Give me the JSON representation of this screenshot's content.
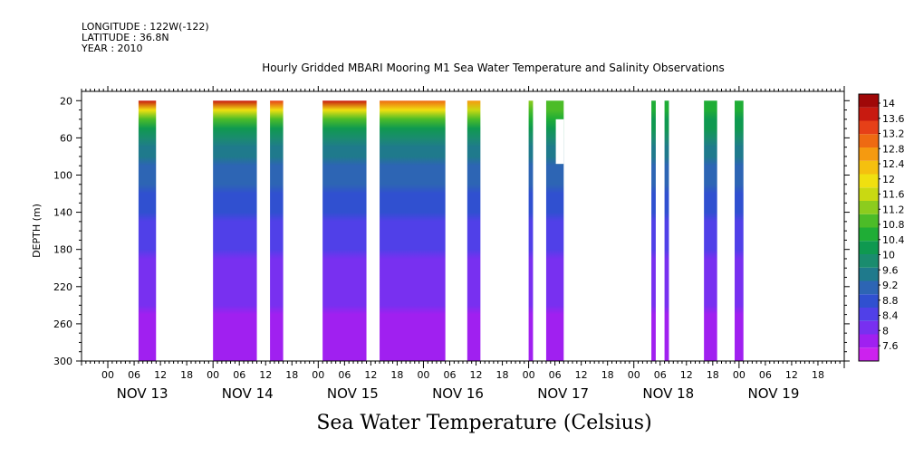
{
  "header": {
    "longitude": "LONGITUDE : 122W(-122)",
    "latitude": "LATITUDE : 36.8N",
    "year": "YEAR : 2010"
  },
  "chart_data": {
    "type": "heatmap",
    "title": "Hourly Gridded MBARI Mooring M1 Sea Water Temperature and Salinity Observations",
    "xlabel": "Sea Water Temperature (Celsius)",
    "ylabel": "DEPTH (m)",
    "x_hour_ticks": [
      "00",
      "06",
      "12",
      "18"
    ],
    "x_day_labels": [
      "NOV 13",
      "NOV 14",
      "NOV 15",
      "NOV 16",
      "NOV 17",
      "NOV 18",
      "NOV 19"
    ],
    "xlim_hours": [
      -6,
      168
    ],
    "ylim": [
      10,
      300
    ],
    "y_ticks": [
      20,
      60,
      100,
      140,
      180,
      220,
      260,
      300
    ],
    "colorbar_levels": [
      "7.6",
      "8",
      "8.4",
      "8.8",
      "9.2",
      "9.6",
      "10",
      "10.4",
      "10.8",
      "11.2",
      "11.6",
      "12",
      "12.4",
      "12.8",
      "13.2",
      "13.6",
      "14"
    ],
    "colorbar_colors": [
      "#cc22ee",
      "#a020f0",
      "#7830f0",
      "#5040e8",
      "#3050d0",
      "#2d65b4",
      "#1f7a8c",
      "#1a8c6e",
      "#0f9950",
      "#1fad36",
      "#4cbc28",
      "#8ccc1e",
      "#c9d912",
      "#f0e010",
      "#f5c00f",
      "#f59a10",
      "#ee6a12",
      "#e64018",
      "#c81a10",
      "#a00808"
    ],
    "data_columns": [
      {
        "start_hour": 7,
        "end_hour": 11,
        "top_temp": 13.8
      },
      {
        "start_hour": 24,
        "end_hour": 34,
        "top_temp": 13.6
      },
      {
        "start_hour": 37,
        "end_hour": 40,
        "top_temp": 13.4
      },
      {
        "start_hour": 49,
        "end_hour": 59,
        "top_temp": 13.5
      },
      {
        "start_hour": 62,
        "end_hour": 77,
        "top_temp": 13.1
      },
      {
        "start_hour": 82,
        "end_hour": 85,
        "top_temp": 12.6
      },
      {
        "start_hour": 96,
        "end_hour": 97,
        "top_temp": 11.4
      },
      {
        "start_hour": 100,
        "end_hour": 104,
        "top_temp": 10.9,
        "gap_depth": [
          40,
          88
        ]
      },
      {
        "start_hour": 124,
        "end_hour": 125,
        "top_temp": 10.6
      },
      {
        "start_hour": 127,
        "end_hour": 128,
        "top_temp": 10.6
      },
      {
        "start_hour": 136,
        "end_hour": 139,
        "top_temp": 10.7
      },
      {
        "start_hour": 143,
        "end_hour": 145,
        "top_temp": 10.6
      }
    ]
  }
}
